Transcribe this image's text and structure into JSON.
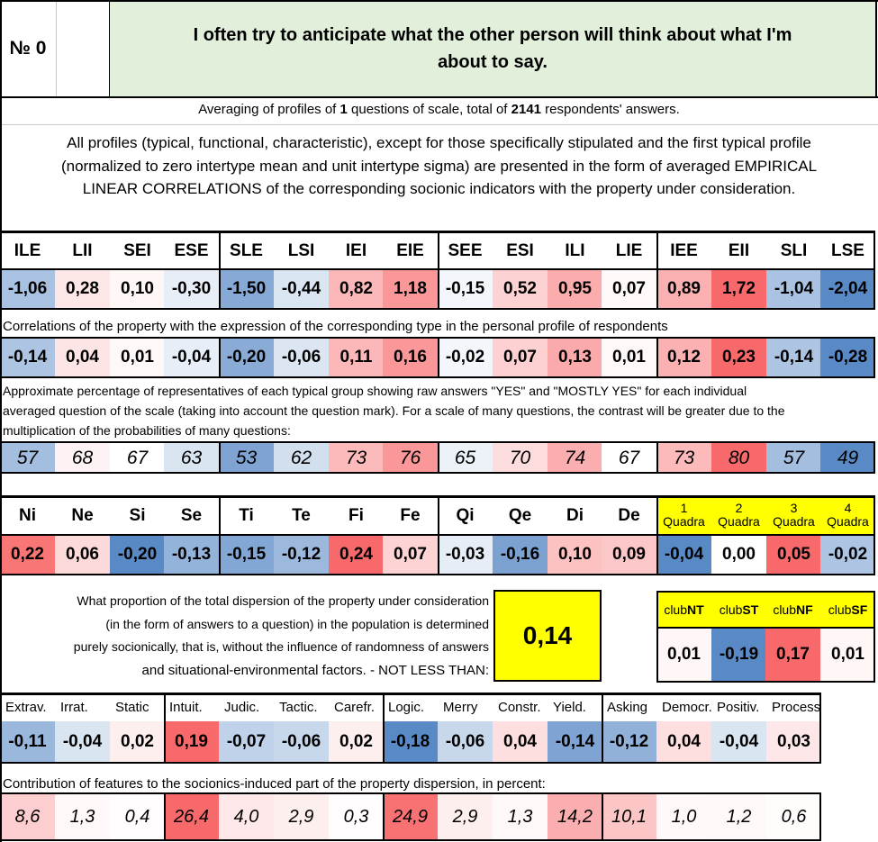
{
  "header": {
    "number_label": "№ 0",
    "question_line1": "I often try to anticipate what the other person will think about what I'm",
    "question_line2": "about to say."
  },
  "averaging": {
    "prefix": "Averaging of profiles of ",
    "questions": "1",
    "middle": " questions of scale, total of ",
    "respondents": "2141",
    "suffix": " respondents' answers."
  },
  "description": {
    "line1": "All profiles (typical, functional, characteristic), except for those specifically stipulated and the first typical profile",
    "line2": "(normalized to zero intertype mean and unit intertype sigma) are presented in the form of averaged EMPIRICAL",
    "line3": "LINEAR CORRELATIONS of the corresponding socionic indicators with the property under consideration."
  },
  "types": {
    "headers": [
      "ILE",
      "LII",
      "SEI",
      "ESE",
      "SLE",
      "LSI",
      "IEI",
      "EIE",
      "SEE",
      "ESI",
      "ILI",
      "LIE",
      "IEE",
      "EII",
      "SLI",
      "LSE"
    ],
    "profile": [
      "-1,06",
      "0,28",
      "0,10",
      "-0,30",
      "-1,50",
      "-0,44",
      "0,82",
      "1,18",
      "-0,15",
      "0,52",
      "0,95",
      "0,07",
      "0,89",
      "1,72",
      "-1,04",
      "-2,04"
    ],
    "profile_values": [
      -1.06,
      0.28,
      0.1,
      -0.3,
      -1.5,
      -0.44,
      0.82,
      1.18,
      -0.15,
      0.52,
      0.95,
      0.07,
      0.89,
      1.72,
      -1.04,
      -2.04
    ],
    "correlation_caption": "Correlations of the property with the expression of the corresponding type in the personal profile of respondents",
    "correlations": [
      "-0,14",
      "0,04",
      "0,01",
      "-0,04",
      "-0,20",
      "-0,06",
      "0,11",
      "0,16",
      "-0,02",
      "0,07",
      "0,13",
      "0,01",
      "0,12",
      "0,23",
      "-0,14",
      "-0,28"
    ],
    "correlation_values": [
      -0.14,
      0.04,
      0.01,
      -0.04,
      -0.2,
      -0.06,
      0.11,
      0.16,
      -0.02,
      0.07,
      0.13,
      0.01,
      0.12,
      0.23,
      -0.14,
      -0.28
    ],
    "percent_caption_line1": "Approximate percentage of representatives of each typical group showing raw answers \"YES\" and \"MOSTLY YES\" for each individual",
    "percent_caption_line2": "averaged question of the scale (taking into account the question mark). For a scale of many questions, the contrast will be greater due to the",
    "percent_caption_line3": "multiplication of the probabilities of many questions:",
    "percentages": [
      "57",
      "68",
      "67",
      "63",
      "53",
      "62",
      "73",
      "76",
      "65",
      "70",
      "74",
      "67",
      "73",
      "80",
      "57",
      "49"
    ],
    "percentage_values": [
      57,
      68,
      67,
      63,
      53,
      62,
      73,
      76,
      65,
      70,
      74,
      67,
      73,
      80,
      57,
      49
    ]
  },
  "functions": {
    "headers": [
      "Ni",
      "Ne",
      "Si",
      "Se",
      "Ti",
      "Te",
      "Fi",
      "Fe",
      "Qi",
      "Qe",
      "Di",
      "De"
    ],
    "values": [
      "0,22",
      "0,06",
      "-0,20",
      "-0,13",
      "-0,15",
      "-0,12",
      "0,24",
      "0,07",
      "-0,03",
      "-0,16",
      "0,10",
      "0,09"
    ],
    "numeric": [
      0.22,
      0.06,
      -0.2,
      -0.13,
      -0.15,
      -0.12,
      0.24,
      0.07,
      -0.03,
      -0.16,
      0.1,
      0.09
    ]
  },
  "quadras": {
    "numbers": [
      "1",
      "2",
      "3",
      "4"
    ],
    "label": "Quadra",
    "values": [
      "-0,04",
      "0,00",
      "0,05",
      "-0,02"
    ],
    "numeric": [
      -0.04,
      0.0,
      0.05,
      -0.02
    ]
  },
  "dispersion": {
    "line1": "What proportion of the total dispersion of the property under consideration",
    "line2": "(in the form of answers to a question) in the population is determined",
    "line3": "purely socionically, that is, without the influence of randomness of answers",
    "line4": "and situational-environmental factors. - NOT LESS THAN:",
    "value": "0,14"
  },
  "clubs": {
    "prefix": "club",
    "names": [
      "NT",
      "ST",
      "NF",
      "SF"
    ],
    "values": [
      "0,01",
      "-0,19",
      "0,17",
      "0,01"
    ],
    "numeric": [
      0.01,
      -0.19,
      0.17,
      0.01
    ]
  },
  "traits": {
    "headers": [
      "Extrav.",
      "Irrat.",
      "Static",
      "Intuit.",
      "Judic.",
      "Tactic.",
      "Carefr.",
      "Logic.",
      "Merry",
      "Constr.",
      "Yield.",
      "Asking",
      "Democr.",
      "Positiv.",
      "Process"
    ],
    "values": [
      "-0,11",
      "-0,04",
      "0,02",
      "0,19",
      "-0,07",
      "-0,06",
      "0,02",
      "-0,18",
      "-0,06",
      "0,04",
      "-0,14",
      "-0,12",
      "0,04",
      "-0,04",
      "0,03"
    ],
    "numeric": [
      -0.11,
      -0.04,
      0.02,
      0.19,
      -0.07,
      -0.06,
      0.02,
      -0.18,
      -0.06,
      0.04,
      -0.14,
      -0.12,
      0.04,
      -0.04,
      0.03
    ],
    "contribution_caption": "Contribution of features to the socionics-induced part of the property dispersion, in percent:",
    "contributions": [
      "8,6",
      "1,3",
      "0,4",
      "26,4",
      "4,0",
      "2,9",
      "0,3",
      "24,9",
      "2,9",
      "1,3",
      "14,2",
      "10,1",
      "1,0",
      "1,2",
      "0,6"
    ],
    "contribution_numeric": [
      8.6,
      1.3,
      0.4,
      26.4,
      4.0,
      2.9,
      0.3,
      24.9,
      2.9,
      1.3,
      14.2,
      10.1,
      1.0,
      1.2,
      0.6
    ]
  },
  "colors": {
    "question_bg": "#e2efda",
    "quadra_yellow": "#ffff00",
    "red": "#f8696b",
    "blue": "#5a8ac6",
    "white": "#ffffff"
  }
}
